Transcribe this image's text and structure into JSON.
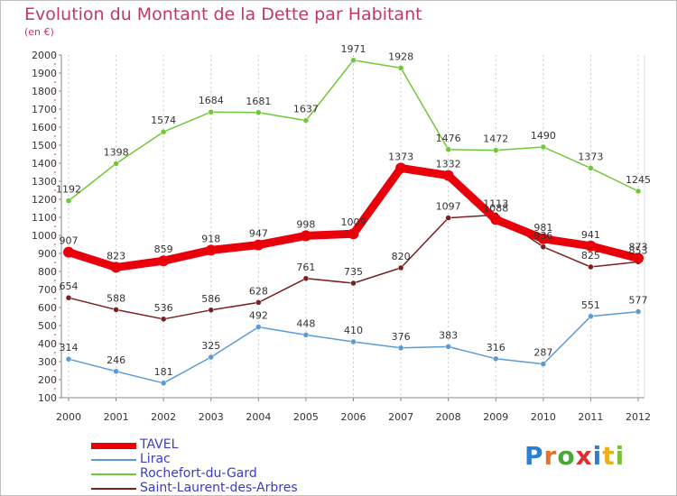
{
  "title": "Evolution du Montant de la Dette par Habitant",
  "subtitle": "(en €)",
  "logo": {
    "letters": [
      "P",
      "r",
      "o",
      "x",
      "i",
      "t",
      "i"
    ],
    "colors": [
      "#2a7fd4",
      "#e8702a",
      "#4aa83a",
      "#d93232",
      "#2a7fd4",
      "#e8b020",
      "#7bbf3a"
    ]
  },
  "chart_data": {
    "type": "line",
    "title": "Evolution du Montant de la Dette par Habitant",
    "subtitle": "(en €)",
    "x": [
      "2000",
      "2001",
      "2002",
      "2003",
      "2004",
      "2005",
      "2006",
      "2007",
      "2008",
      "2009",
      "2010",
      "2011",
      "2012"
    ],
    "yticks": [
      100,
      200,
      300,
      400,
      500,
      600,
      700,
      800,
      900,
      1000,
      1100,
      1200,
      1300,
      1400,
      1500,
      1600,
      1700,
      1800,
      1900,
      2000
    ],
    "ylim": [
      100,
      2000
    ],
    "grid": "vertical",
    "legend_position": "bottom-left",
    "series": [
      {
        "name": "TAVEL",
        "color": "#e8000b",
        "values": [
          907,
          823,
          859,
          918,
          947,
          998,
          1009,
          1373,
          1332,
          1088,
          981,
          941,
          873
        ],
        "labels": [
          "907",
          "823",
          "859",
          "918",
          "947",
          "998",
          "1009",
          "1373",
          "1332",
          "1088",
          "981",
          "941",
          "873"
        ]
      },
      {
        "name": "Lirac",
        "color": "#5b9bd5",
        "values": [
          314,
          246,
          181,
          325,
          492,
          448,
          410,
          376,
          383,
          316,
          287,
          551,
          577
        ],
        "labels": [
          "314",
          "246",
          "181",
          "325",
          "492",
          "448",
          "410",
          "376",
          "383",
          "316",
          "287",
          "551",
          "577"
        ]
      },
      {
        "name": "Rochefort-du-Gard",
        "color": "#70c73a",
        "values": [
          1192,
          1398,
          1574,
          1684,
          1681,
          1637,
          1971,
          1928,
          1476,
          1472,
          1490,
          1373,
          1245
        ],
        "labels": [
          "1192",
          "1398",
          "1574",
          "1684",
          "1681",
          "1637",
          "1971",
          "1928",
          "1476",
          "1472",
          "1490",
          "1373",
          "1245"
        ]
      },
      {
        "name": "Saint-Laurent-des-Arbres",
        "color": "#7a1f1f",
        "values": [
          654,
          588,
          536,
          586,
          628,
          761,
          735,
          820,
          1097,
          1113,
          936,
          825,
          853
        ],
        "labels": [
          "654",
          "588",
          "536",
          "586",
          "628",
          "761",
          "735",
          "820",
          "1097",
          "1113",
          "936",
          "825",
          "853"
        ]
      }
    ]
  }
}
